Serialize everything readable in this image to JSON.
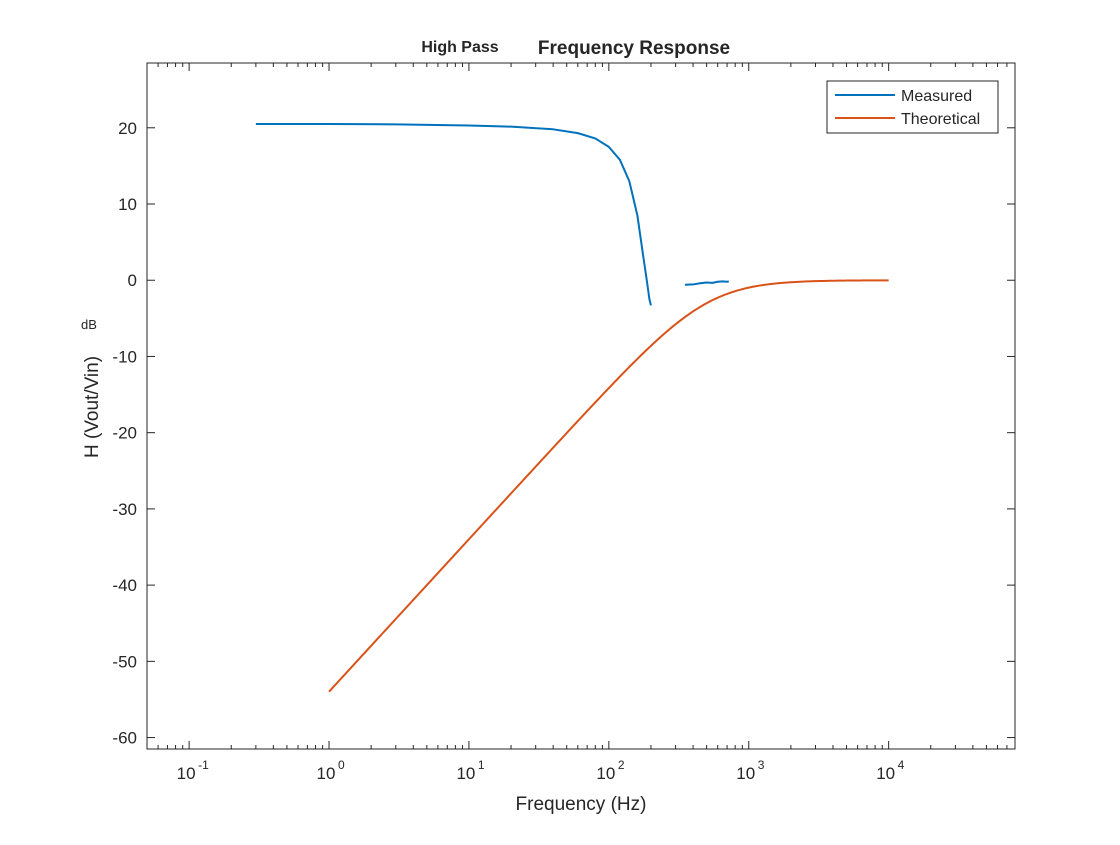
{
  "chart_data": {
    "type": "line",
    "title_small": "High Pass",
    "title": "Frequency Response",
    "xlabel": "Frequency (Hz)",
    "ylabel": "H (Vout/Vin)",
    "ylabel_unit": "dB",
    "x_scale": "log",
    "xlim": [
      0.05,
      80000
    ],
    "ylim": [
      -61.5,
      28.5
    ],
    "x_ticks": [
      {
        "value": 0.1,
        "base": "10",
        "exp": "-1"
      },
      {
        "value": 1,
        "base": "10",
        "exp": "0"
      },
      {
        "value": 10,
        "base": "10",
        "exp": "1"
      },
      {
        "value": 100,
        "base": "10",
        "exp": "2"
      },
      {
        "value": 1000,
        "base": "10",
        "exp": "3"
      },
      {
        "value": 10000,
        "base": "10",
        "exp": "4"
      }
    ],
    "y_ticks": [
      20,
      10,
      0,
      -10,
      -20,
      -30,
      -40,
      -50,
      -60
    ],
    "y_tick_labels": [
      "20",
      "10",
      "0",
      "-10",
      "-20",
      "-30",
      "-40",
      "-50",
      "-60"
    ],
    "grid": false,
    "legend_position": "top-right",
    "series": [
      {
        "name": "Measured",
        "color": "#0072BD",
        "segments": [
          {
            "x": [
              0.3,
              1,
              3,
              10,
              20,
              40,
              60,
              80,
              100,
              120,
              140,
              160,
              175,
              185,
              195,
              200
            ],
            "y": [
              20.5,
              20.5,
              20.45,
              20.3,
              20.15,
              19.8,
              19.3,
              18.6,
              17.5,
              15.8,
              13.0,
              8.5,
              3.5,
              0.5,
              -2.5,
              -3.3
            ]
          },
          {
            "x": [
              350,
              400,
              450,
              500,
              550,
              600,
              650,
              700,
              720
            ],
            "y": [
              -0.6,
              -0.55,
              -0.4,
              -0.3,
              -0.35,
              -0.2,
              -0.15,
              -0.2,
              -0.15
            ]
          }
        ]
      },
      {
        "name": "Theoretical",
        "color": "#D95319",
        "fc": 500,
        "x_range": [
          1,
          10000
        ]
      }
    ]
  }
}
